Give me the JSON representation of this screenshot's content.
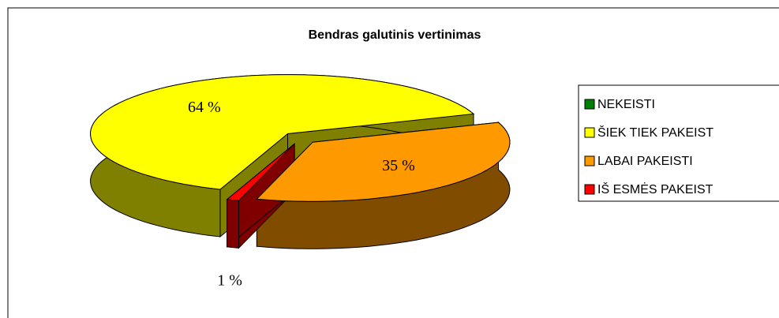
{
  "chart_data": {
    "type": "pie",
    "title": "Bendras galutinis vertinimas",
    "categories": [
      "NEKEISTI",
      "ŠIEK TIEK PAKEIST",
      "LABAI PAKEISTI",
      "IŠ ESMĖS PAKEIST"
    ],
    "values": [
      0,
      64,
      35,
      1
    ],
    "value_labels": [
      null,
      "64 %",
      "35 %",
      "1 %"
    ],
    "colors": [
      "#008000",
      "#ffff00",
      "#ff9900",
      "#ff0000"
    ],
    "legend": "right"
  }
}
